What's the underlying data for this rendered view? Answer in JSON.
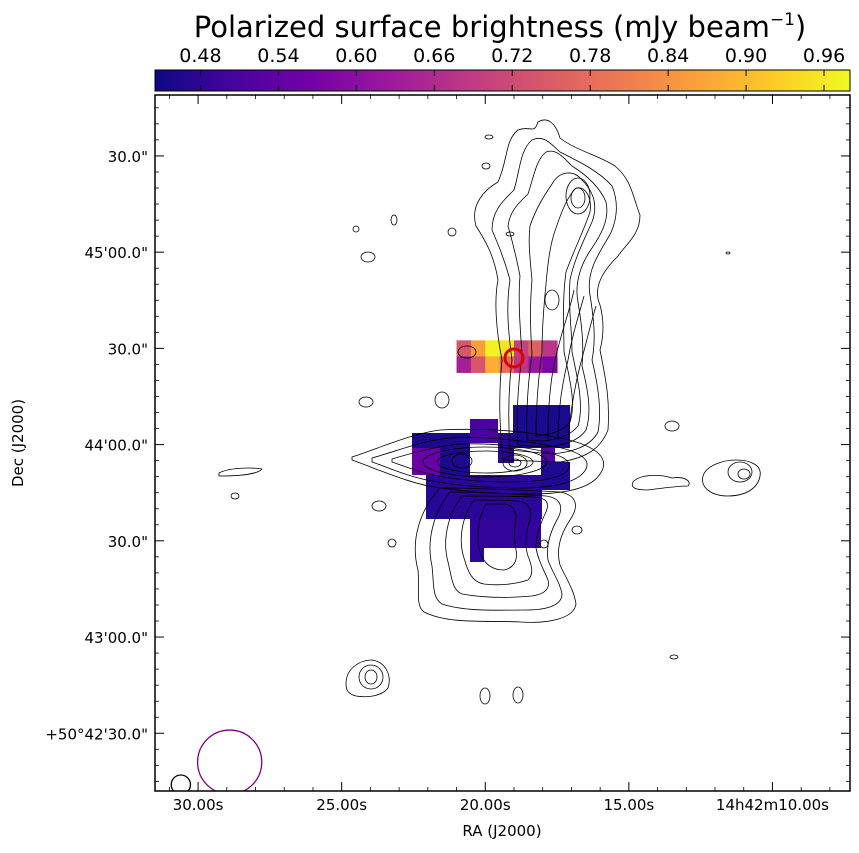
{
  "chart_data": {
    "type": "heatmap",
    "colorbar": {
      "title": "Polarized surface brightness (mJy beam",
      "title_exponent": "−1",
      "title_close": ")",
      "ticks": [
        "0.48",
        "0.54",
        "0.60",
        "0.66",
        "0.72",
        "0.78",
        "0.84",
        "0.90",
        "0.96"
      ],
      "range": [
        0.445,
        0.98
      ],
      "colormap": [
        "#0d0887",
        "#46039f",
        "#7201a8",
        "#9c179e",
        "#bd3786",
        "#d8576b",
        "#ed7953",
        "#fb9f3a",
        "#fdca26",
        "#f0f921"
      ]
    },
    "xlabel": "RA (J2000)",
    "ylabel": "Dec (J2000)",
    "x_ticks": [
      "30.00s",
      "25.00s",
      "20.00s",
      "15.00s",
      "14h42m10.00s"
    ],
    "y_ticks": [
      "30.0\"",
      "45'00.0\"",
      "30.0\"",
      "44'00.0\"",
      "30.0\"",
      "43'00.0\"",
      "+50°42'30.0\""
    ],
    "x_range_s": [
      31.5,
      7.3
    ],
    "y_range_arcsec": [
      2622,
      2839
    ],
    "polarized_cells": [
      {
        "ra_s": 20.75,
        "dec_arcsec": 2760,
        "value": 0.74
      },
      {
        "ra_s": 20.25,
        "dec_arcsec": 2760,
        "value": 0.86
      },
      {
        "ra_s": 19.75,
        "dec_arcsec": 2760,
        "value": 0.97
      },
      {
        "ra_s": 19.25,
        "dec_arcsec": 2760,
        "value": 0.95
      },
      {
        "ra_s": 18.75,
        "dec_arcsec": 2760,
        "value": 0.7
      },
      {
        "ra_s": 18.25,
        "dec_arcsec": 2760,
        "value": 0.76
      },
      {
        "ra_s": 17.75,
        "dec_arcsec": 2760,
        "value": 0.68
      },
      {
        "ra_s": 20.75,
        "dec_arcsec": 2755,
        "value": 0.64
      },
      {
        "ra_s": 20.25,
        "dec_arcsec": 2755,
        "value": 0.74
      },
      {
        "ra_s": 19.75,
        "dec_arcsec": 2755,
        "value": 0.88
      },
      {
        "ra_s": 19.25,
        "dec_arcsec": 2755,
        "value": 0.78
      },
      {
        "ra_s": 18.75,
        "dec_arcsec": 2755,
        "value": 0.68
      },
      {
        "ra_s": 18.25,
        "dec_arcsec": 2755,
        "value": 0.62
      },
      {
        "ra_s": 17.75,
        "dec_arcsec": 2755,
        "value": 0.58
      }
    ],
    "low_cells_note": "",
    "radio_core_marker": {
      "ra_s": 19.0,
      "dec_arcsec": 2757
    },
    "beams": [
      {
        "name": "",
        "ra_s": 28.9,
        "dec_arcsec": 2631,
        "radius_arcsec": 10,
        "color": "#800080"
      },
      {
        "name": "",
        "ra_s": 30.6,
        "dec_arcsec": 2624,
        "radius_arcsec": 3,
        "color": "#000000"
      }
    ],
    "contour_color": "#000000",
    "marker_color": "#e00000"
  }
}
